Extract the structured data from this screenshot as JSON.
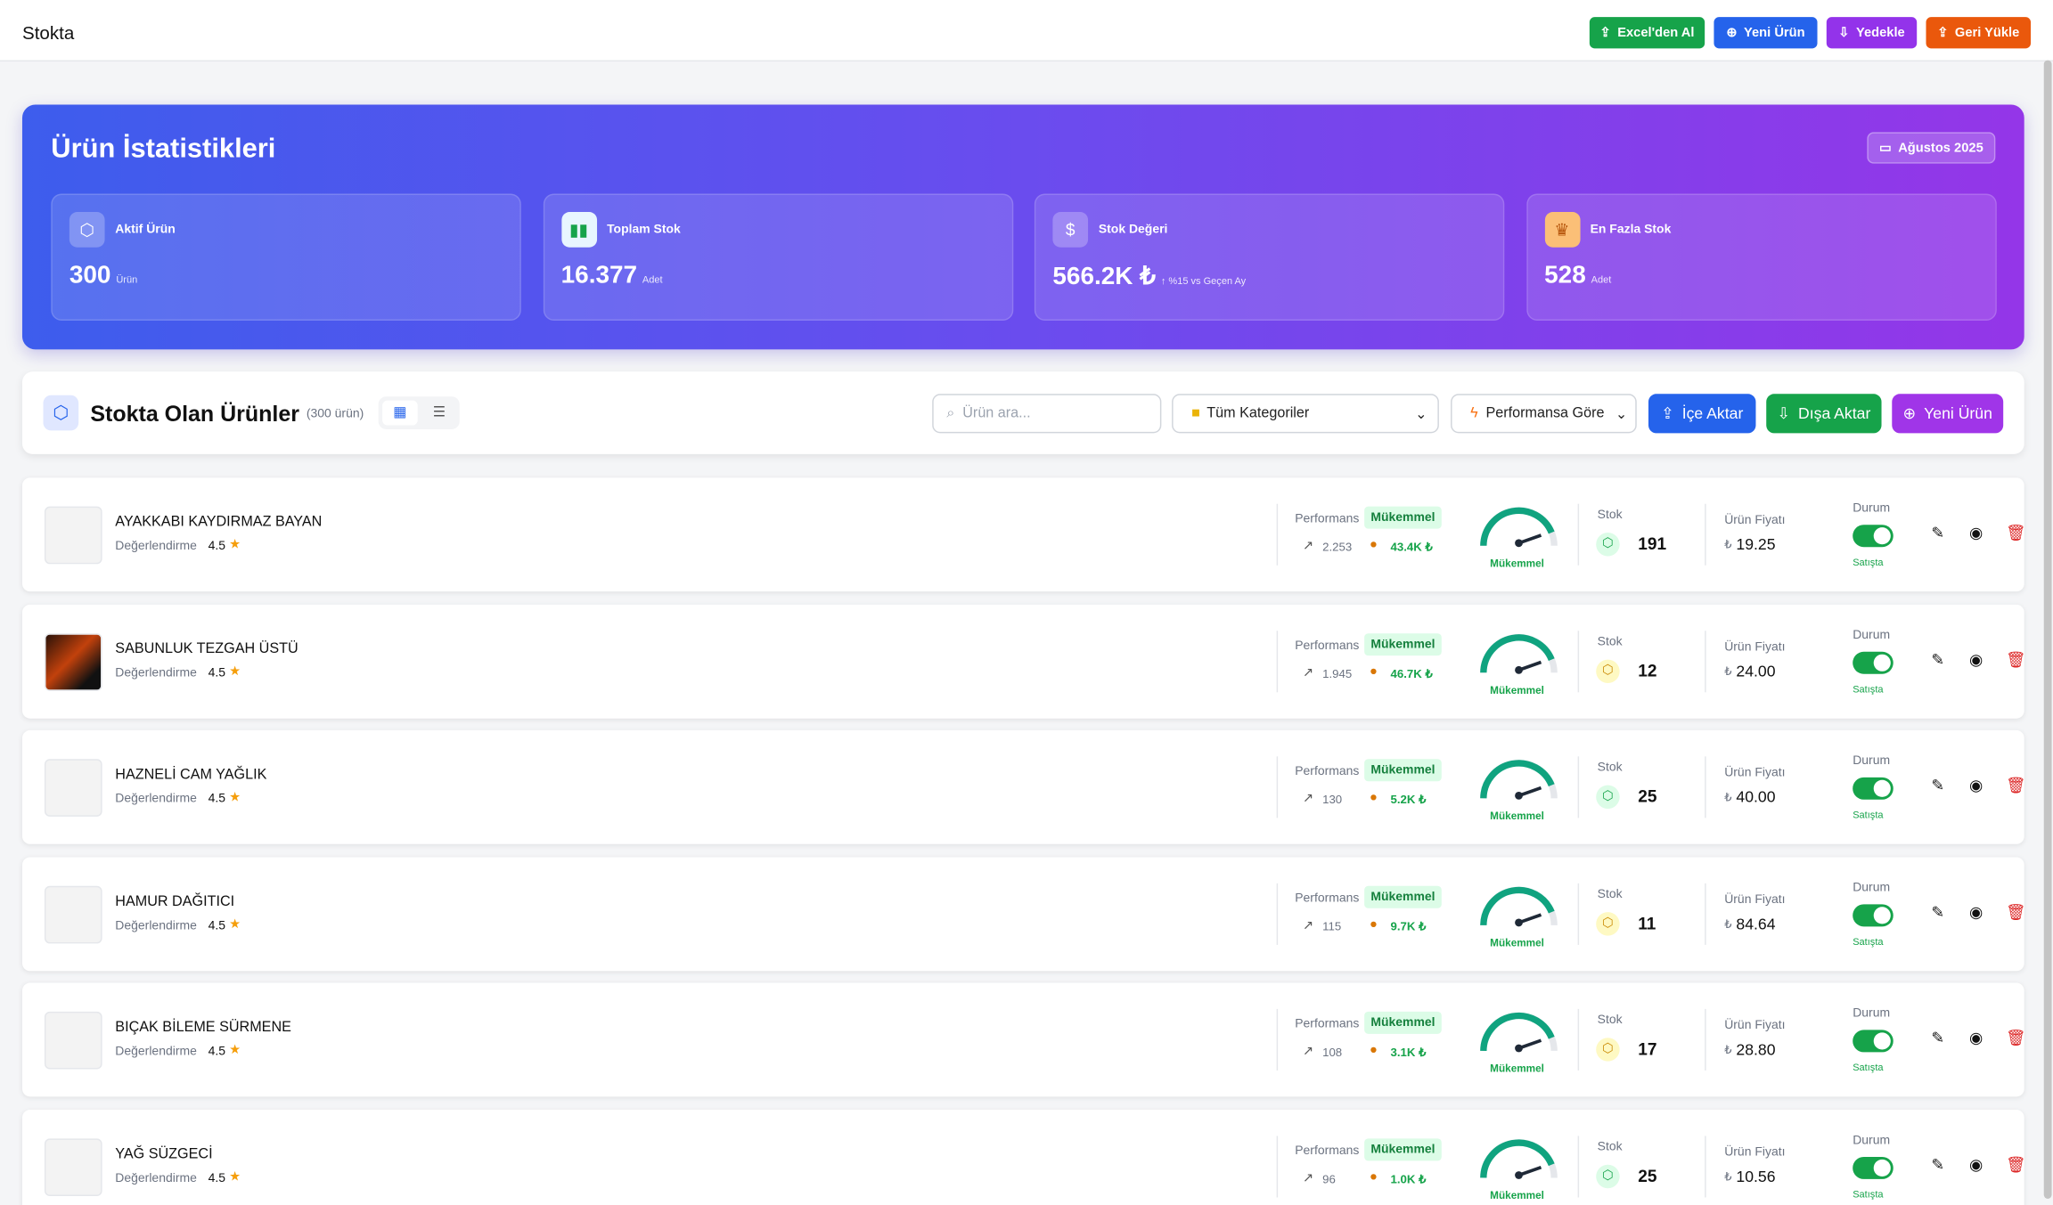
{
  "header": {
    "title": "Stokta",
    "buttons": [
      "Excel'den Al",
      "Yeni Ürün",
      "Yedekle",
      "Geri Yükle"
    ]
  },
  "stats": {
    "title": "Ürün İstatistikleri",
    "date": "Ağustos 2025",
    "cards": [
      {
        "label": "Aktif Ürün",
        "value": "300",
        "unit": "Ürün"
      },
      {
        "label": "Toplam Stok",
        "value": "16.377",
        "unit": "Adet"
      },
      {
        "label": "Stok Değeri",
        "value": "566.2K ₺",
        "unit": "↑ %15 vs Geçen Ay"
      },
      {
        "label": "En Fazla Stok",
        "value": "528",
        "unit": "Adet"
      }
    ]
  },
  "toolbar": {
    "title": "Stokta Olan Ürünler",
    "count": "(300 ürün)",
    "search_placeholder": "Ürün ara...",
    "category": "Tüm Kategoriler",
    "sort": "Performansa Göre",
    "buttons": [
      "İçe Aktar",
      "Dışa Aktar",
      "Yeni Ürün"
    ]
  },
  "row_labels": {
    "performance": "Performans",
    "performance_badge": "Mükemmel",
    "rating": "Değerlendirme",
    "gauge": "Mükemmel",
    "stock": "Stok",
    "price": "Ürün Fiyatı",
    "currency": "₺",
    "status": "Durum",
    "status_value": "Satışta"
  },
  "products": [
    {
      "name": "AYAKKABI KAYDIRMAZ BAYAN",
      "rating": "4.5",
      "views": "2.253",
      "revenue": "43.4K ₺",
      "stock": "191",
      "price": "19.25"
    },
    {
      "name": "SABUNLUK TEZGAH ÜSTÜ",
      "rating": "4.5",
      "views": "1.945",
      "revenue": "46.7K ₺",
      "stock": "12",
      "price": "24.00"
    },
    {
      "name": "HAZNELİ CAM YAĞLIK",
      "rating": "4.5",
      "views": "130",
      "revenue": "5.2K ₺",
      "stock": "25",
      "price": "40.00"
    },
    {
      "name": "HAMUR DAĞITICI",
      "rating": "4.5",
      "views": "115",
      "revenue": "9.7K ₺",
      "stock": "11",
      "price": "84.64"
    },
    {
      "name": "BIÇAK BİLEME SÜRMENE",
      "rating": "4.5",
      "views": "108",
      "revenue": "3.1K ₺",
      "stock": "17",
      "price": "28.80"
    },
    {
      "name": "YAĞ SÜZGECİ",
      "rating": "4.5",
      "views": "96",
      "revenue": "1.0K ₺",
      "stock": "25",
      "price": "10.56"
    }
  ]
}
